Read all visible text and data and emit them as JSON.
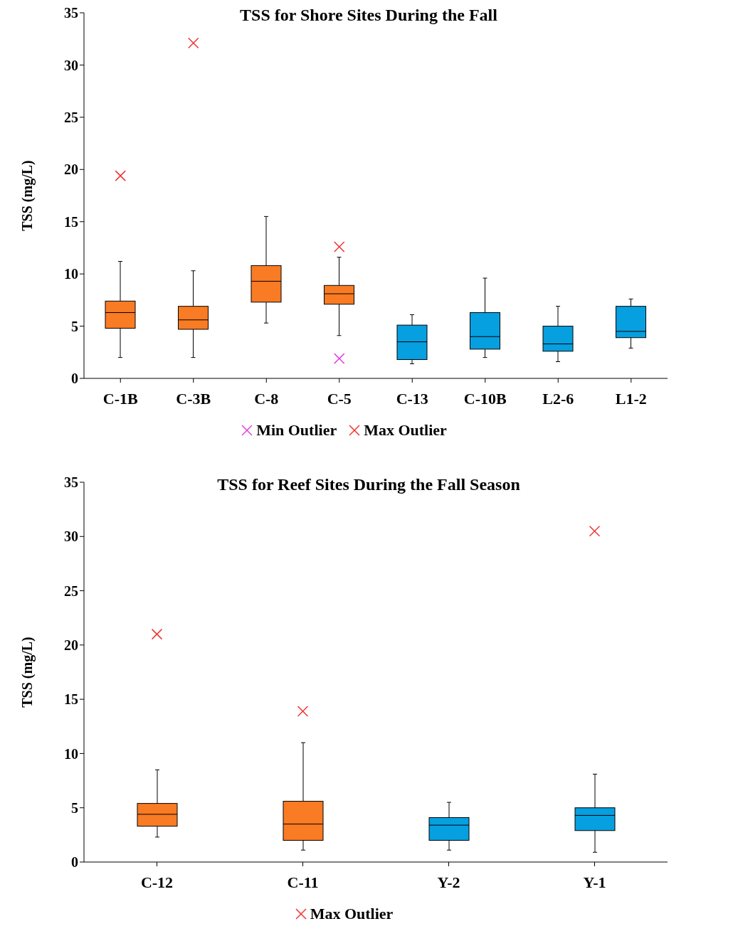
{
  "chart_data": [
    {
      "type": "box",
      "title": "TSS for Shore Sites During the Fall",
      "ylabel": "TSS (mg/L)",
      "categories": [
        "C-1B",
        "C-3B",
        "C-8",
        "C-5",
        "C-13",
        "C-10B",
        "L2-6",
        "L1-2"
      ],
      "ylim": [
        0,
        35
      ],
      "yticks": [
        0,
        5,
        10,
        15,
        20,
        25,
        30,
        35
      ],
      "grid": false,
      "legend": "bottom",
      "marker": "cross",
      "series": [
        {
          "colors": [
            "#f97b24",
            "#f97b24",
            "#f97b24",
            "#f97b24",
            "#069fe0",
            "#069fe0",
            "#069fe0",
            "#069fe0"
          ],
          "boxes": [
            {
              "low": 2.0,
              "q1": 4.8,
              "median": 6.3,
              "q3": 7.4,
              "high": 11.2
            },
            {
              "low": 2.0,
              "q1": 4.7,
              "median": 5.6,
              "q3": 6.9,
              "high": 10.3
            },
            {
              "low": 5.3,
              "q1": 7.3,
              "median": 9.3,
              "q3": 10.8,
              "high": 15.5
            },
            {
              "low": 4.1,
              "q1": 7.1,
              "median": 8.1,
              "q3": 8.9,
              "high": 11.6
            },
            {
              "low": 1.4,
              "q1": 1.8,
              "median": 3.5,
              "q3": 5.1,
              "high": 6.1
            },
            {
              "low": 2.0,
              "q1": 2.8,
              "median": 4.0,
              "q3": 6.3,
              "high": 9.6
            },
            {
              "low": 1.6,
              "q1": 2.6,
              "median": 3.3,
              "q3": 5.0,
              "high": 6.9
            },
            {
              "low": 2.9,
              "q1": 3.9,
              "median": 4.5,
              "q3": 6.9,
              "high": 7.6
            }
          ]
        },
        {
          "type": "scatter",
          "name": "Min Outlier",
          "color": "#e040e0",
          "x": [
            "C-5"
          ],
          "values": [
            1.9
          ]
        },
        {
          "type": "scatter",
          "name": "Max Outlier",
          "color": "#f03030",
          "x": [
            "C-1B",
            "C-3B",
            "C-5"
          ],
          "values": [
            19.4,
            32.1,
            12.6
          ]
        }
      ]
    },
    {
      "type": "box",
      "title": "TSS for Reef Sites During the Fall Season",
      "ylabel": "TSS (mg/L)",
      "categories": [
        "C-12",
        "C-11",
        "Y-2",
        "Y-1"
      ],
      "ylim": [
        0,
        35
      ],
      "yticks": [
        0,
        5,
        10,
        15,
        20,
        25,
        30,
        35
      ],
      "grid": false,
      "legend": "bottom",
      "marker": "cross",
      "series": [
        {
          "colors": [
            "#f97b24",
            "#f97b24",
            "#069fe0",
            "#069fe0"
          ],
          "boxes": [
            {
              "low": 2.3,
              "q1": 3.3,
              "median": 4.4,
              "q3": 5.4,
              "high": 8.5
            },
            {
              "low": 1.1,
              "q1": 2.0,
              "median": 3.5,
              "q3": 5.6,
              "high": 11.0
            },
            {
              "low": 1.1,
              "q1": 2.0,
              "median": 3.4,
              "q3": 4.1,
              "high": 5.5
            },
            {
              "low": 0.9,
              "q1": 2.9,
              "median": 4.3,
              "q3": 5.0,
              "high": 8.1
            }
          ]
        },
        {
          "type": "scatter",
          "name": "Max Outlier",
          "color": "#f03030",
          "x": [
            "C-12",
            "C-11",
            "Y-1"
          ],
          "values": [
            21.0,
            13.9,
            30.5
          ]
        }
      ]
    }
  ]
}
